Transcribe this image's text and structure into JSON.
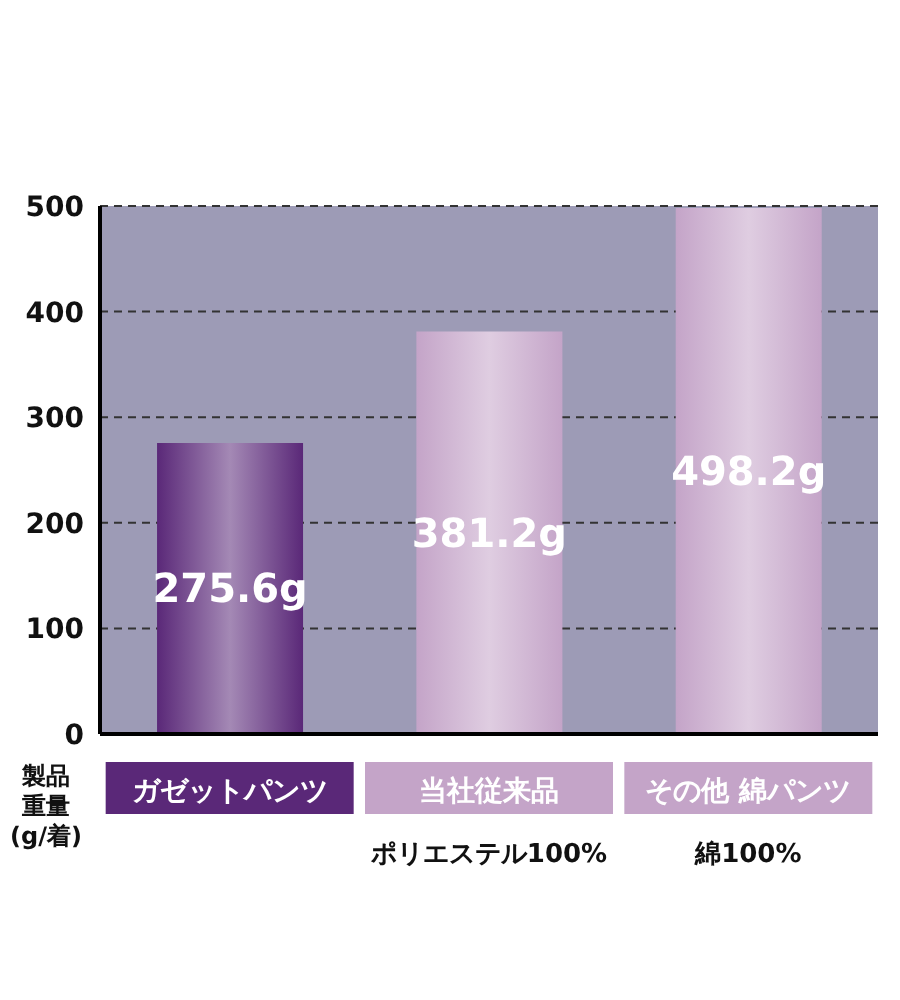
{
  "chart_data": {
    "type": "bar",
    "ylabel": "製品重量(g/着)",
    "categories": [
      "ガゼットパンツ",
      "当社従来品",
      "その他 綿パンツ"
    ],
    "values": [
      275.6,
      381.2,
      498.2
    ],
    "colors": [
      "#5a2878",
      "#c4a4c8",
      "#c4a4c8"
    ],
    "value_labels": [
      "275.6g",
      "381.2g",
      "498.2g"
    ],
    "annotations": [
      "ポリエステル100%",
      "綿100%"
    ],
    "ylim": [
      0,
      500
    ],
    "yticks": [
      0,
      100,
      200,
      300,
      400,
      500
    ],
    "grid": "y"
  }
}
